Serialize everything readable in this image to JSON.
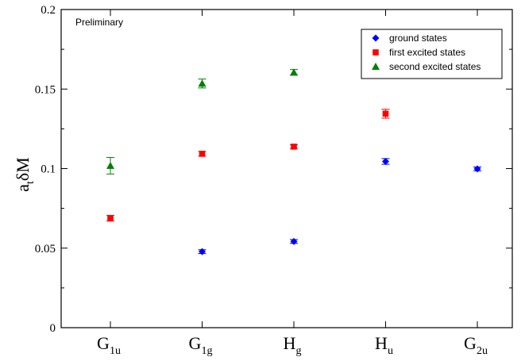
{
  "chart_data": {
    "type": "scatter",
    "annotation": "Preliminary",
    "ylabel": {
      "main": "a",
      "sub": "t",
      "rest": "δM"
    },
    "ylim": [
      0,
      0.2
    ],
    "yticks": [
      {
        "value": 0,
        "label": "0"
      },
      {
        "value": 0.05,
        "label": "0.05"
      },
      {
        "value": 0.1,
        "label": "0.1"
      },
      {
        "value": 0.15,
        "label": "0.15"
      },
      {
        "value": 0.2,
        "label": "0.2"
      }
    ],
    "categories": [
      {
        "main": "G",
        "sub": "1u"
      },
      {
        "main": "G",
        "sub": "1g"
      },
      {
        "main": "H",
        "sub": "g"
      },
      {
        "main": "H",
        "sub": "u"
      },
      {
        "main": "G",
        "sub": "2u"
      }
    ],
    "legend_position": "top-right",
    "series": [
      {
        "name": "ground states",
        "marker": "diamond",
        "color": "#0000ff",
        "points": [
          {
            "category": 1,
            "y": 0.0478,
            "err": 0.0012
          },
          {
            "category": 2,
            "y": 0.0542,
            "err": 0.0012
          },
          {
            "category": 3,
            "y": 0.1045,
            "err": 0.0018
          },
          {
            "category": 4,
            "y": 0.0998,
            "err": 0.0012
          }
        ]
      },
      {
        "name": "first excited states",
        "marker": "square",
        "color": "#ff0000",
        "points": [
          {
            "category": 0,
            "y": 0.0688,
            "err": 0.0018
          },
          {
            "category": 1,
            "y": 0.1093,
            "err": 0.0015
          },
          {
            "category": 2,
            "y": 0.1138,
            "err": 0.0012
          },
          {
            "category": 3,
            "y": 0.1345,
            "err": 0.0028
          }
        ]
      },
      {
        "name": "second excited states",
        "marker": "triangle",
        "color": "#008000",
        "points": [
          {
            "category": 0,
            "y": 0.1018,
            "err": 0.0052
          },
          {
            "category": 1,
            "y": 0.1535,
            "err": 0.0028
          },
          {
            "category": 2,
            "y": 0.1605,
            "err": 0.0018
          }
        ]
      }
    ]
  }
}
